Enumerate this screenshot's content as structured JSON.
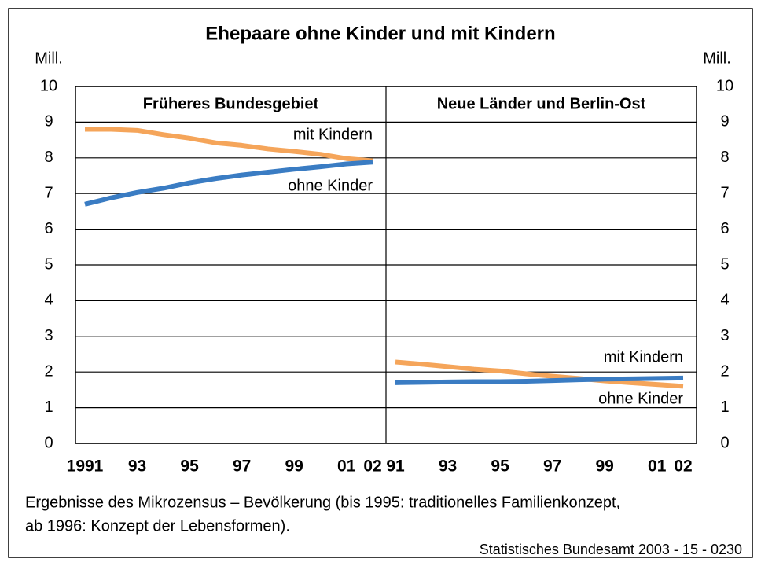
{
  "title": "Ehepaare ohne Kinder und mit Kindern",
  "note": [
    "Ergebnisse des Mikrozensus – Bevölkerung (bis 1995: traditionelles Familienkonzept,",
    "ab 1996: Konzept der Lebensformen)."
  ],
  "source": "Statistisches Bundesamt 2003 - 15 - 0230",
  "chart_data": [
    {
      "type": "line",
      "title": "Früheres Bundesgebiet",
      "ylabel": "Mill.",
      "categories": [
        "1991",
        null,
        "93",
        null,
        "95",
        null,
        "97",
        null,
        "99",
        null,
        "01",
        "02"
      ],
      "ylim": [
        0,
        10
      ],
      "yticks": [
        0,
        1,
        2,
        3,
        4,
        5,
        6,
        7,
        8,
        9,
        10
      ],
      "grid": true,
      "series": [
        {
          "name": "mit Kindern",
          "color": "#f5a55a",
          "values": [
            8.8,
            8.8,
            8.77,
            8.65,
            8.55,
            8.42,
            8.35,
            8.25,
            8.18,
            8.1,
            7.98,
            7.92
          ]
        },
        {
          "name": "ohne Kinder",
          "color": "#3a7cc3",
          "values": [
            6.7,
            6.88,
            7.03,
            7.15,
            7.3,
            7.42,
            7.52,
            7.6,
            7.68,
            7.75,
            7.83,
            7.88
          ]
        }
      ]
    },
    {
      "type": "line",
      "title": "Neue Länder und Berlin-Ost",
      "ylabel": "Mill.",
      "categories": [
        "91",
        null,
        "93",
        null,
        "95",
        null,
        "97",
        null,
        "99",
        null,
        "01",
        "02"
      ],
      "ylim": [
        0,
        10
      ],
      "yticks": [
        0,
        1,
        2,
        3,
        4,
        5,
        6,
        7,
        8,
        9,
        10
      ],
      "grid": true,
      "series": [
        {
          "name": "mit Kindern",
          "color": "#f5a55a",
          "values": [
            2.28,
            2.22,
            2.15,
            2.08,
            2.03,
            1.95,
            1.88,
            1.82,
            1.75,
            1.7,
            1.65,
            1.6
          ]
        },
        {
          "name": "ohne Kinder",
          "color": "#3a7cc3",
          "values": [
            1.7,
            1.71,
            1.72,
            1.73,
            1.73,
            1.74,
            1.76,
            1.78,
            1.8,
            1.81,
            1.82,
            1.83
          ]
        }
      ]
    }
  ]
}
